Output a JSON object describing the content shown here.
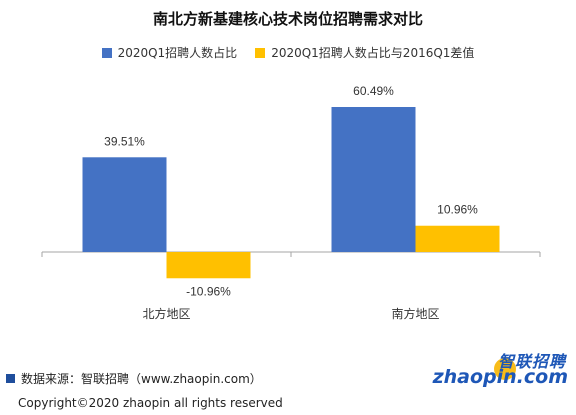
{
  "chart_data": {
    "type": "bar",
    "title": "南北方新基建核心技术岗位招聘需求对比",
    "categories": [
      "北方地区",
      "南方地区"
    ],
    "series": [
      {
        "name": "2020Q1招聘人数占比",
        "color": "#4472c4",
        "values": [
          39.51,
          60.49
        ],
        "labels": [
          "39.51%",
          "60.49%"
        ]
      },
      {
        "name": "2020Q1招聘人数占比与2016Q1差值",
        "color": "#ffc000",
        "values": [
          -10.96,
          10.96
        ],
        "labels": [
          "-10.96%",
          "10.96%"
        ]
      }
    ],
    "ylim": [
      -10.96,
      60.49
    ],
    "grid": false,
    "legend_position": "top"
  },
  "footer": {
    "source": "数据来源：智联招聘（www.zhaopin.com）",
    "copyright": "Copyright©2020 zhaopin all rights reserved"
  },
  "logo": {
    "top_text": "智联招聘",
    "bottom_text": "zhaopin.com"
  }
}
